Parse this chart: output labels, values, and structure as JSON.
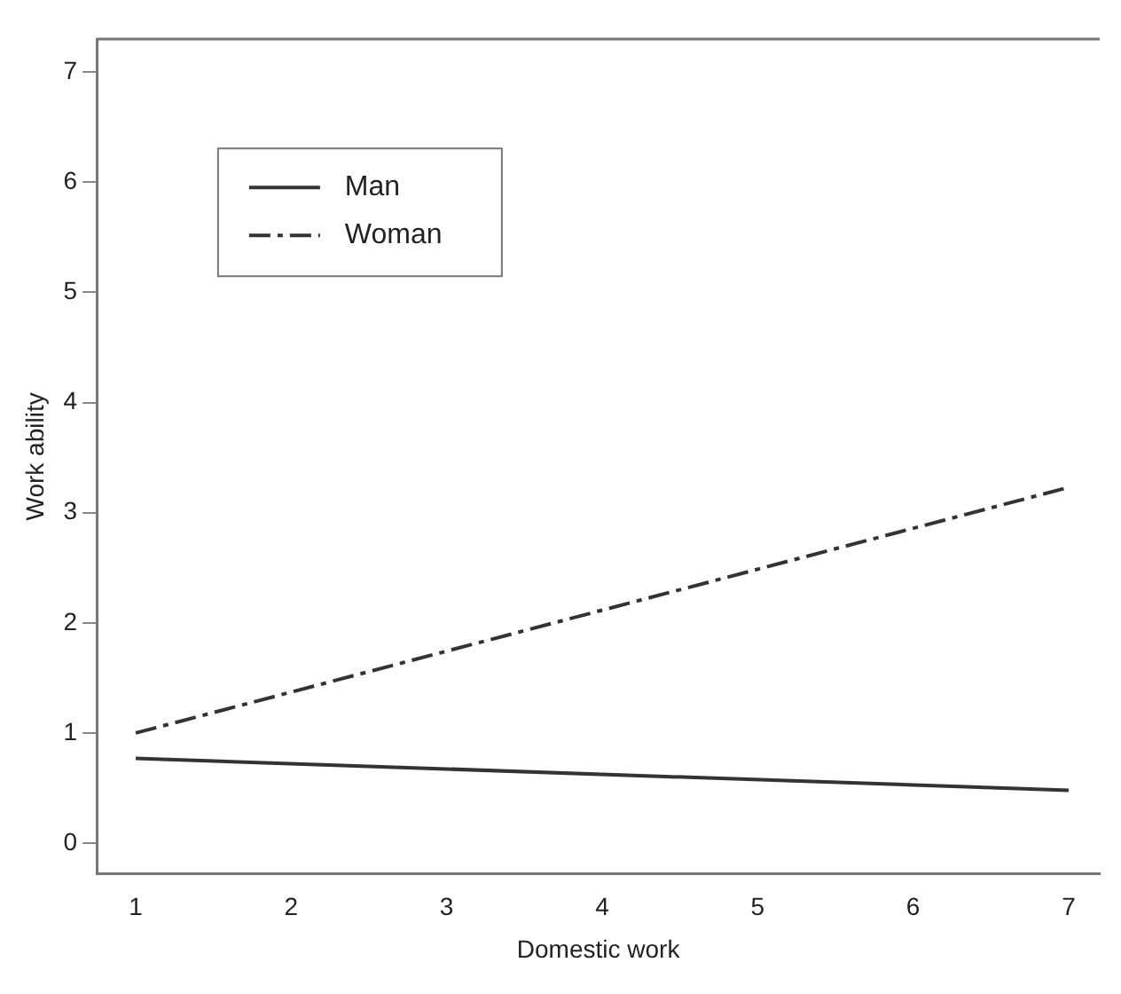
{
  "chart_data": {
    "type": "line",
    "xlabel": "Domestic work",
    "ylabel": "Work ability",
    "x": [
      1,
      7
    ],
    "series": [
      {
        "name": "Man",
        "color": "#333333",
        "values": [
          0.77,
          0.48
        ],
        "line_style": "solid"
      },
      {
        "name": "Woman",
        "color": "#333333",
        "values": [
          1.0,
          3.23
        ],
        "line_style": "dashed"
      }
    ],
    "xlim": [
      0.75,
      7.2
    ],
    "xticks": [
      1,
      2,
      3,
      4,
      5,
      6,
      7
    ],
    "ylim": [
      -0.28,
      7.3
    ],
    "yticks": [
      0,
      1,
      2,
      3,
      4,
      5,
      6,
      7
    ],
    "grid": false,
    "legend": "top left",
    "marker": "none"
  }
}
